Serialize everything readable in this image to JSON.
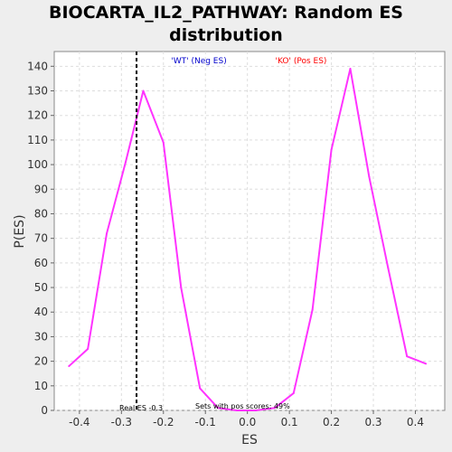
{
  "title_line1": "BIOCARTA_IL2_PATHWAY: Random ES",
  "title_line2": "distribution",
  "colors": {
    "background": "#eeeeee",
    "plot_bg": "#ffffff",
    "grid": "#dddddd",
    "curve": "#ff33ff",
    "real_es_line": "#000000",
    "neg_label": "#0000cc",
    "pos_label": "#ff0000"
  },
  "chart_data": {
    "type": "line",
    "title": "BIOCARTA_IL2_PATHWAY: Random ES distribution",
    "xlabel": "ES",
    "ylabel": "P(ES)",
    "xlim": [
      -0.46,
      0.47
    ],
    "ylim": [
      0,
      146
    ],
    "xticks": [
      -0.4,
      -0.3,
      -0.2,
      -0.1,
      0.0,
      0.1,
      0.2,
      0.3,
      0.4
    ],
    "xtick_labels": [
      "-0.4",
      "-0.3",
      "-0.2",
      "-0.1",
      "0.0",
      "0.1",
      "0.2",
      "0.3",
      "0.4"
    ],
    "yticks": [
      0,
      10,
      20,
      30,
      40,
      50,
      60,
      70,
      80,
      90,
      100,
      110,
      120,
      130,
      140
    ],
    "grid": true,
    "series": [
      {
        "x": [
          -0.425,
          -0.38,
          -0.335,
          -0.29,
          -0.248,
          -0.2,
          -0.158,
          -0.113,
          -0.07,
          -0.025,
          0.02,
          0.065,
          0.11,
          0.155,
          0.2,
          0.245,
          0.29,
          0.335,
          0.38,
          0.425
        ],
        "y": [
          18,
          25,
          72,
          101,
          130,
          109,
          50,
          9,
          1,
          0,
          0,
          1,
          7,
          41,
          106,
          139,
          95,
          58,
          22,
          19
        ]
      }
    ],
    "real_es": -0.264,
    "annotations": {
      "neg_label": "'WT' (Neg ES)",
      "pos_label": "'KO' (Pos ES)",
      "real_es_label": "Real ES -0.3",
      "pos_scores_label": "Sets with pos scores: 49%"
    }
  }
}
